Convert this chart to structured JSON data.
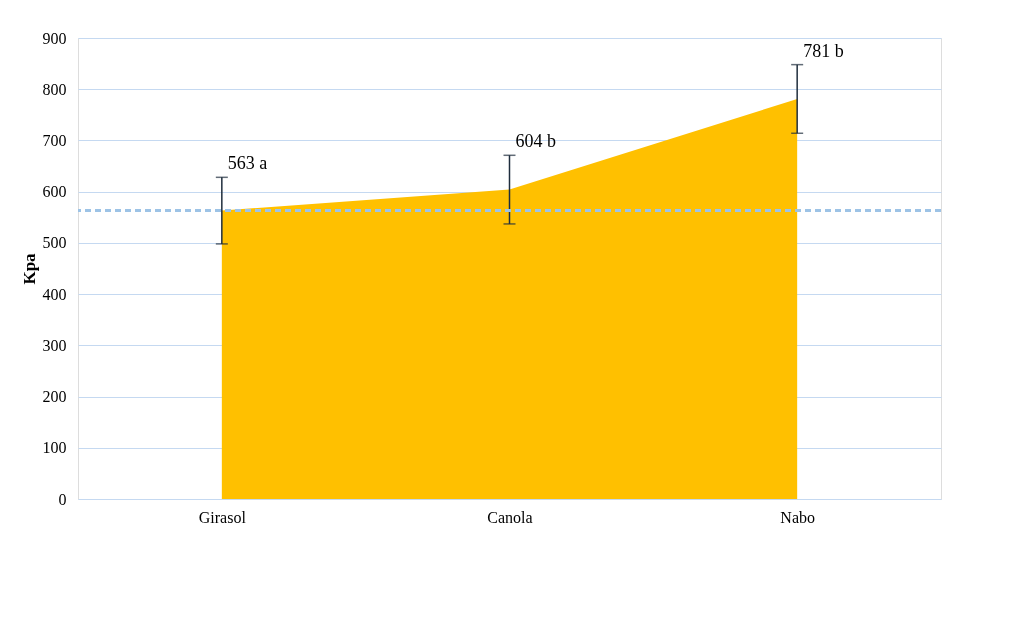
{
  "chart_data": {
    "type": "area",
    "ylabel": "Kpa",
    "categories": [
      "Girasol",
      "Canola",
      "Nabo"
    ],
    "series": [
      {
        "color": "#ffc000",
        "values": [
          563,
          604,
          781
        ],
        "errors": [
          65,
          67,
          67
        ],
        "value_labels": [
          "563 a",
          "604 b",
          "781 b"
        ]
      }
    ],
    "ylim": [
      0,
      900
    ],
    "yticks": [
      0,
      100,
      200,
      300,
      400,
      500,
      600,
      700,
      800,
      900
    ],
    "grid": "y",
    "ref_lines": [
      {
        "axis": "y",
        "value": 563,
        "color": "#9dc3e6",
        "line_style": "dashed"
      }
    ]
  }
}
